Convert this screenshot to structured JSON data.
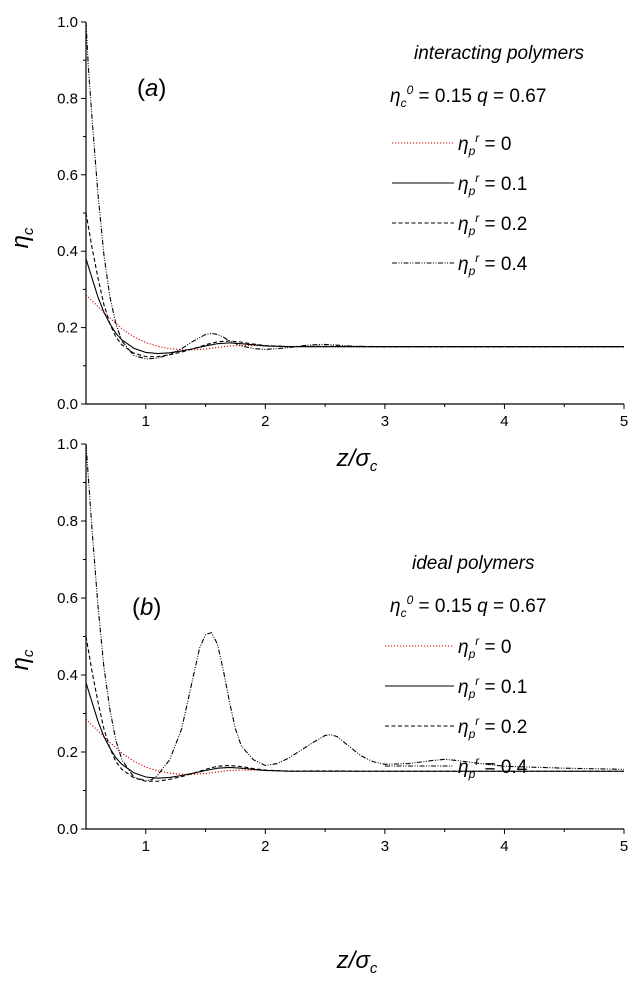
{
  "chart_data": [
    {
      "type": "line",
      "panel_label": "a",
      "heading": "interacting polymers",
      "params": {
        "eta_c0": "0.15",
        "q": "0.67"
      },
      "xlabel": "z/σc",
      "ylabel": "ηc",
      "xlim": [
        0.5,
        5
      ],
      "ylim": [
        0,
        1
      ],
      "xticks": [
        1,
        2,
        3,
        4,
        5
      ],
      "yticks": [
        "0.0",
        "0.2",
        "0.4",
        "0.6",
        "0.8",
        "1.0"
      ],
      "grid": false,
      "legend_position": "right",
      "series": [
        {
          "name": "0",
          "color": "#d40000",
          "dash": "dotted",
          "x": [
            0.5,
            0.6,
            0.7,
            0.8,
            0.9,
            1.0,
            1.1,
            1.2,
            1.3,
            1.4,
            1.5,
            1.6,
            1.7,
            1.8,
            1.9,
            2.0,
            2.2,
            2.4,
            2.6,
            2.8,
            3.0,
            3.5,
            4.0,
            4.5,
            5.0
          ],
          "y": [
            0.285,
            0.255,
            0.225,
            0.197,
            0.176,
            0.161,
            0.151,
            0.145,
            0.142,
            0.142,
            0.144,
            0.148,
            0.152,
            0.153,
            0.153,
            0.152,
            0.151,
            0.15,
            0.15,
            0.15,
            0.15,
            0.15,
            0.15,
            0.15,
            0.15
          ]
        },
        {
          "name": "0.1",
          "color": "#000000",
          "dash": "solid",
          "x": [
            0.5,
            0.55,
            0.6,
            0.65,
            0.7,
            0.75,
            0.8,
            0.9,
            1.0,
            1.1,
            1.2,
            1.3,
            1.4,
            1.5,
            1.6,
            1.7,
            1.8,
            1.9,
            2.0,
            2.2,
            2.4,
            2.6,
            2.8,
            3.0,
            3.5,
            4.0,
            4.5,
            5.0
          ],
          "y": [
            0.38,
            0.33,
            0.28,
            0.24,
            0.21,
            0.185,
            0.168,
            0.146,
            0.135,
            0.132,
            0.134,
            0.139,
            0.145,
            0.152,
            0.158,
            0.16,
            0.158,
            0.155,
            0.152,
            0.15,
            0.15,
            0.15,
            0.15,
            0.15,
            0.15,
            0.15,
            0.15,
            0.15
          ]
        },
        {
          "name": "0.2",
          "color": "#000000",
          "dash": "dashed",
          "x": [
            0.5,
            0.55,
            0.6,
            0.65,
            0.7,
            0.75,
            0.8,
            0.9,
            1.0,
            1.1,
            1.2,
            1.3,
            1.4,
            1.5,
            1.6,
            1.7,
            1.8,
            1.9,
            2.0,
            2.2,
            2.4,
            2.6,
            2.8,
            3.0,
            3.5,
            4.0,
            4.5,
            5.0
          ],
          "y": [
            0.5,
            0.41,
            0.33,
            0.26,
            0.21,
            0.175,
            0.155,
            0.133,
            0.124,
            0.124,
            0.129,
            0.136,
            0.145,
            0.155,
            0.163,
            0.165,
            0.162,
            0.157,
            0.153,
            0.15,
            0.151,
            0.151,
            0.15,
            0.15,
            0.15,
            0.15,
            0.15,
            0.15
          ]
        },
        {
          "name": "0.4",
          "color": "#000000",
          "dash": "dashdotdot",
          "x": [
            0.5,
            0.52,
            0.55,
            0.6,
            0.65,
            0.7,
            0.75,
            0.8,
            0.9,
            1.0,
            1.1,
            1.2,
            1.3,
            1.4,
            1.5,
            1.55,
            1.6,
            1.65,
            1.7,
            1.8,
            1.9,
            2.0,
            2.1,
            2.2,
            2.3,
            2.4,
            2.5,
            2.6,
            2.7,
            2.8,
            3.0,
            3.5,
            4.0,
            4.5,
            5.0
          ],
          "y": [
            1.0,
            0.88,
            0.75,
            0.55,
            0.39,
            0.28,
            0.21,
            0.165,
            0.127,
            0.118,
            0.12,
            0.13,
            0.145,
            0.165,
            0.182,
            0.185,
            0.182,
            0.175,
            0.165,
            0.152,
            0.145,
            0.143,
            0.145,
            0.148,
            0.152,
            0.155,
            0.156,
            0.154,
            0.152,
            0.151,
            0.15,
            0.15,
            0.15,
            0.15,
            0.15
          ]
        }
      ]
    },
    {
      "type": "line",
      "panel_label": "b",
      "heading": "ideal polymers",
      "params": {
        "eta_c0": "0.15",
        "q": "0.67"
      },
      "xlabel": "z/σc",
      "ylabel": "ηc",
      "xlim": [
        0.5,
        5
      ],
      "ylim": [
        0,
        1
      ],
      "xticks": [
        1,
        2,
        3,
        4,
        5
      ],
      "yticks": [
        "0.0",
        "0.2",
        "0.4",
        "0.6",
        "0.8",
        "1.0"
      ],
      "grid": false,
      "legend_position": "right",
      "series": [
        {
          "name": "0",
          "color": "#d40000",
          "dash": "dotted",
          "x": [
            0.5,
            0.6,
            0.7,
            0.8,
            0.9,
            1.0,
            1.1,
            1.2,
            1.3,
            1.4,
            1.5,
            1.6,
            1.7,
            1.8,
            1.9,
            2.0,
            2.2,
            2.4,
            2.6,
            2.8,
            3.0,
            3.5,
            4.0,
            4.5,
            5.0
          ],
          "y": [
            0.285,
            0.255,
            0.225,
            0.197,
            0.176,
            0.161,
            0.151,
            0.145,
            0.142,
            0.142,
            0.144,
            0.148,
            0.152,
            0.153,
            0.153,
            0.152,
            0.151,
            0.15,
            0.15,
            0.15,
            0.15,
            0.15,
            0.15,
            0.15,
            0.15
          ]
        },
        {
          "name": "0.1",
          "color": "#000000",
          "dash": "solid",
          "x": [
            0.5,
            0.55,
            0.6,
            0.65,
            0.7,
            0.75,
            0.8,
            0.9,
            1.0,
            1.1,
            1.2,
            1.3,
            1.4,
            1.5,
            1.6,
            1.7,
            1.8,
            1.9,
            2.0,
            2.2,
            2.4,
            2.6,
            2.8,
            3.0,
            3.5,
            4.0,
            4.5,
            5.0
          ],
          "y": [
            0.38,
            0.33,
            0.28,
            0.24,
            0.21,
            0.185,
            0.168,
            0.146,
            0.135,
            0.132,
            0.134,
            0.139,
            0.145,
            0.152,
            0.158,
            0.16,
            0.158,
            0.155,
            0.152,
            0.15,
            0.15,
            0.15,
            0.15,
            0.15,
            0.15,
            0.15,
            0.15,
            0.15
          ]
        },
        {
          "name": "0.2",
          "color": "#000000",
          "dash": "dashed",
          "x": [
            0.5,
            0.55,
            0.6,
            0.65,
            0.7,
            0.75,
            0.8,
            0.9,
            1.0,
            1.1,
            1.2,
            1.3,
            1.4,
            1.5,
            1.6,
            1.7,
            1.8,
            1.9,
            2.0,
            2.2,
            2.4,
            2.6,
            2.8,
            3.0,
            3.5,
            4.0,
            4.5,
            5.0
          ],
          "y": [
            0.5,
            0.41,
            0.33,
            0.26,
            0.21,
            0.175,
            0.155,
            0.133,
            0.124,
            0.124,
            0.129,
            0.136,
            0.145,
            0.155,
            0.163,
            0.165,
            0.162,
            0.157,
            0.153,
            0.15,
            0.151,
            0.151,
            0.15,
            0.15,
            0.15,
            0.15,
            0.15,
            0.15
          ]
        },
        {
          "name": "0.4",
          "color": "#000000",
          "dash": "dashdotdot",
          "x": [
            0.5,
            0.55,
            0.6,
            0.65,
            0.7,
            0.75,
            0.8,
            0.9,
            1.0,
            1.05,
            1.1,
            1.2,
            1.3,
            1.35,
            1.4,
            1.45,
            1.5,
            1.55,
            1.6,
            1.65,
            1.7,
            1.75,
            1.8,
            1.9,
            2.0,
            2.1,
            2.2,
            2.3,
            2.4,
            2.5,
            2.55,
            2.6,
            2.7,
            2.8,
            2.9,
            3.0,
            3.2,
            3.4,
            3.5,
            3.6,
            3.8,
            4.0,
            4.5,
            5.0
          ],
          "y": [
            1.0,
            0.78,
            0.58,
            0.42,
            0.31,
            0.23,
            0.18,
            0.135,
            0.125,
            0.128,
            0.14,
            0.18,
            0.26,
            0.33,
            0.4,
            0.47,
            0.505,
            0.51,
            0.48,
            0.41,
            0.33,
            0.26,
            0.215,
            0.18,
            0.165,
            0.17,
            0.185,
            0.205,
            0.225,
            0.243,
            0.245,
            0.24,
            0.215,
            0.19,
            0.175,
            0.168,
            0.17,
            0.178,
            0.181,
            0.178,
            0.17,
            0.163,
            0.158,
            0.155
          ]
        }
      ]
    }
  ]
}
